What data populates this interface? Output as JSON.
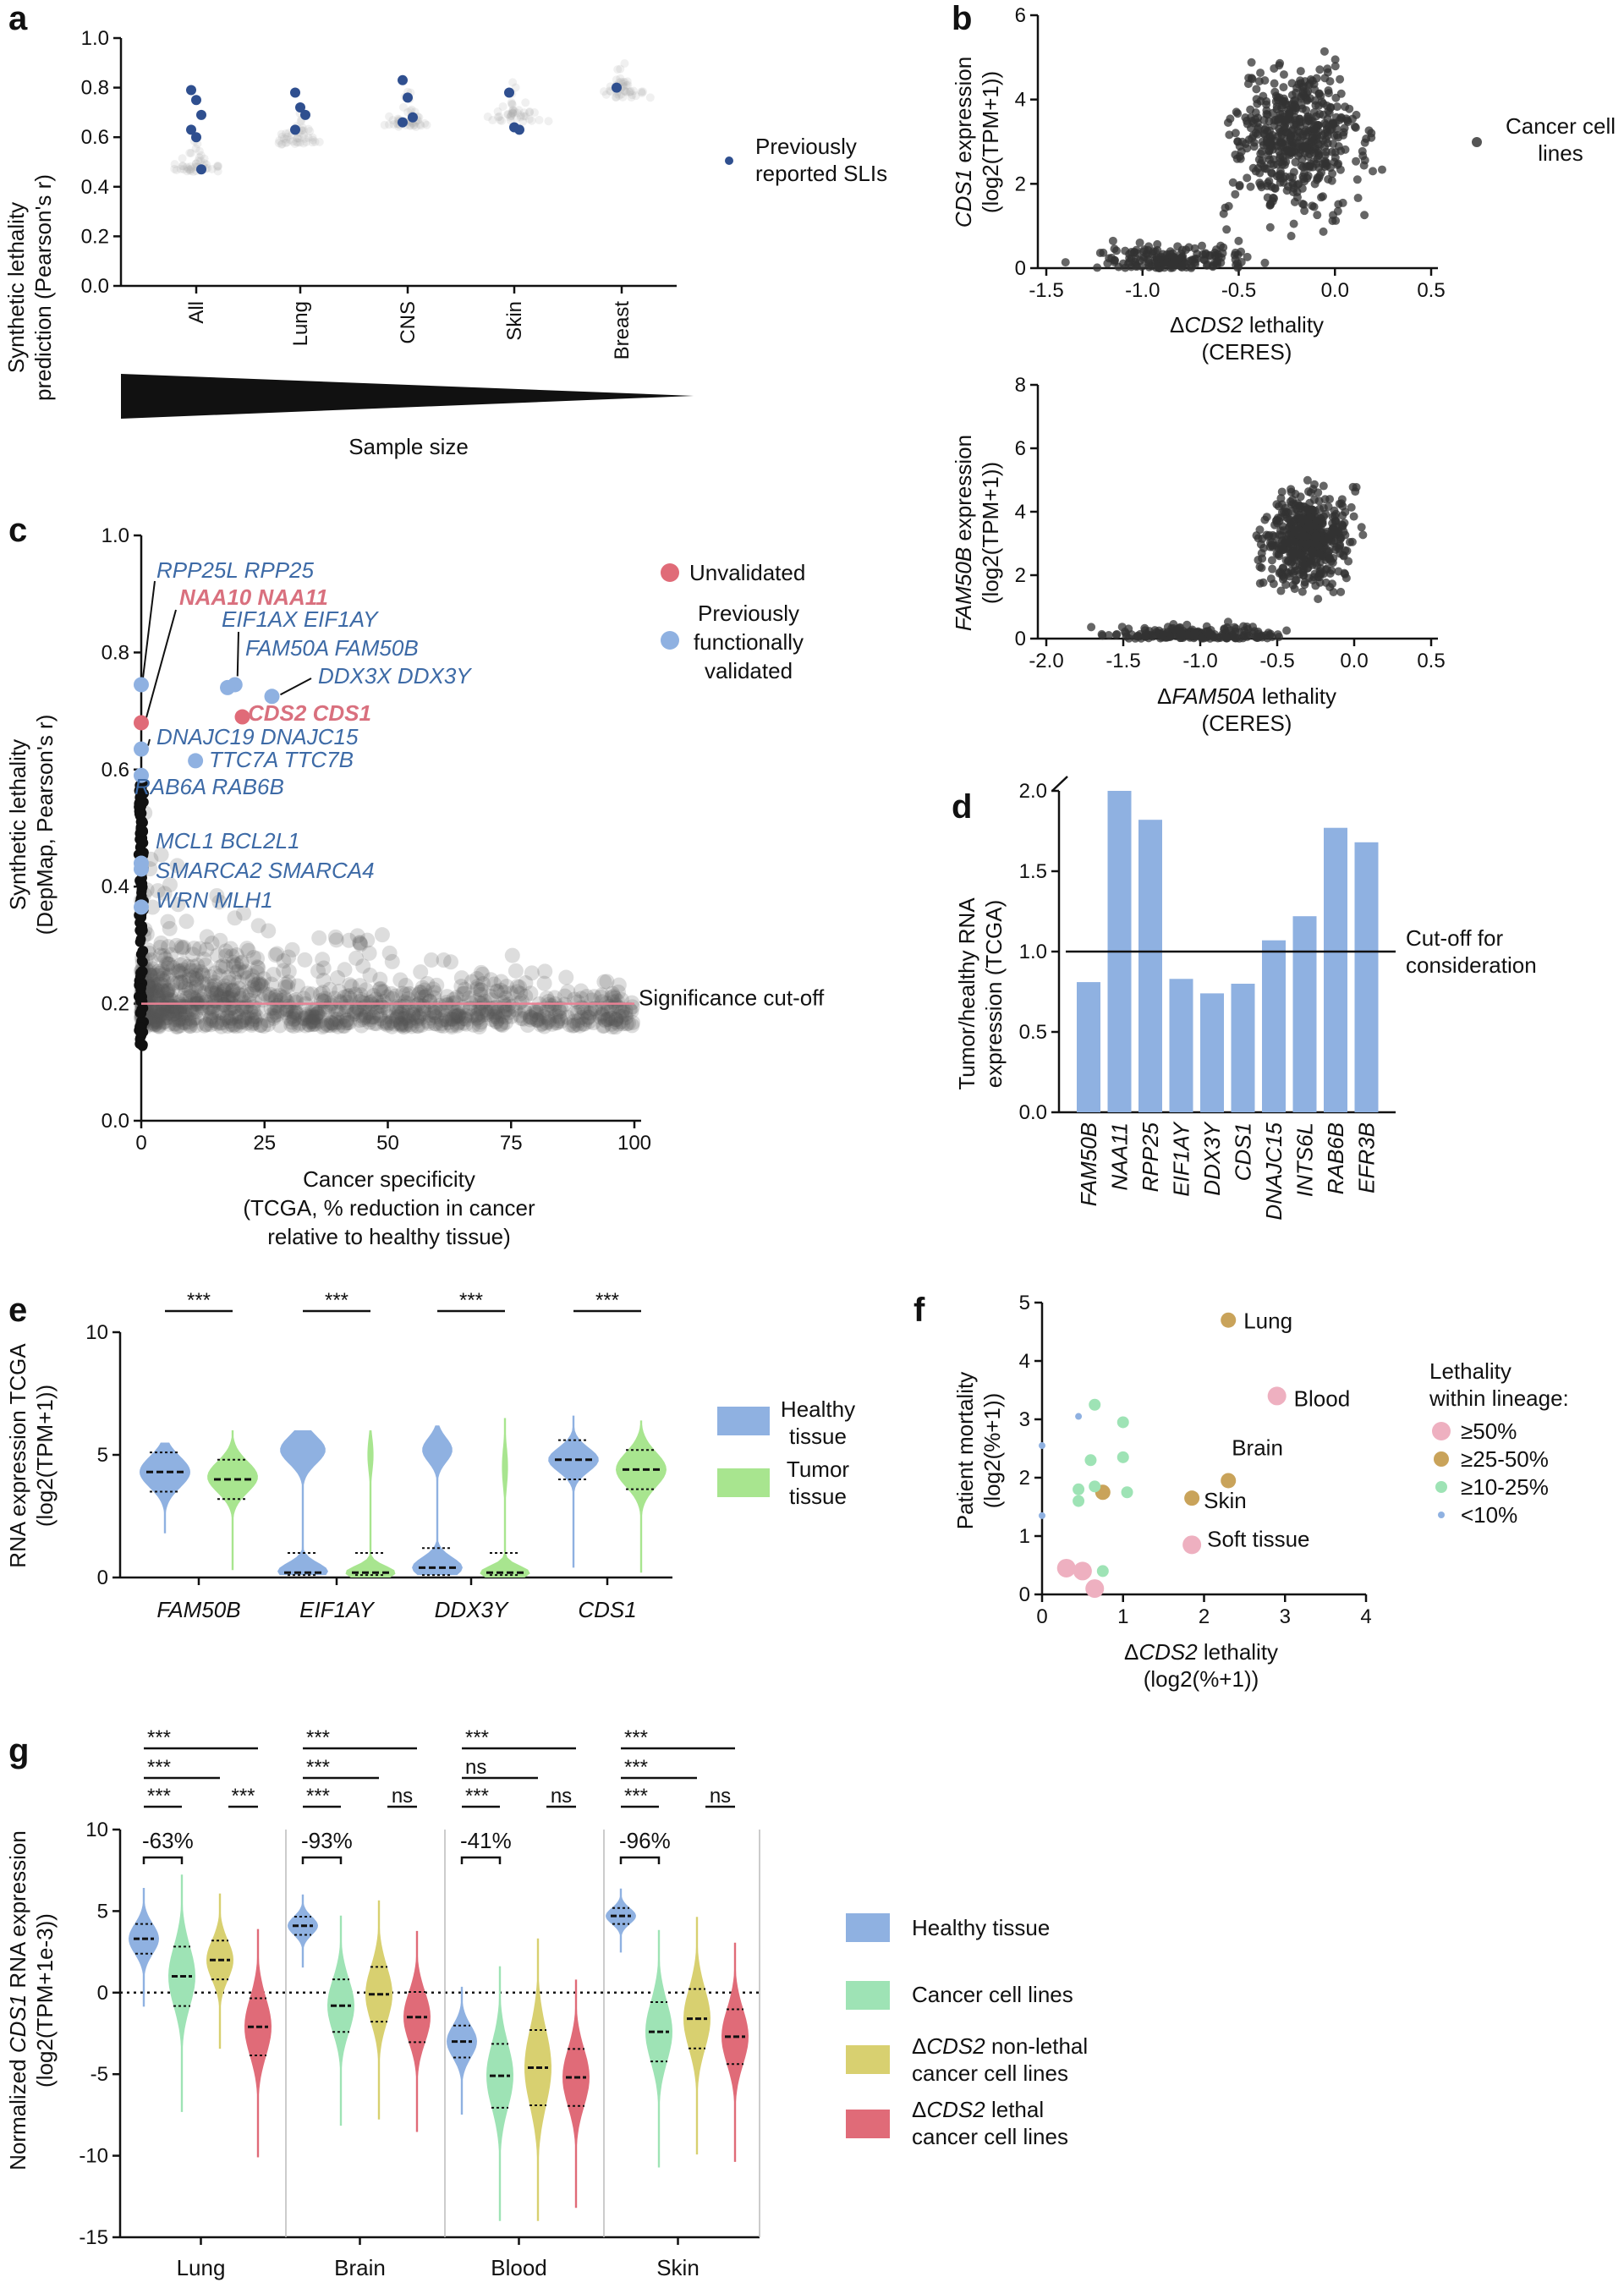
{
  "colors": {
    "blue": "#8fb1e1",
    "green": "#a8e58f",
    "red": "#e06b78",
    "yellow": "#d8d070",
    "mint": "#9ee3b5",
    "pink": "#eeb0c0",
    "gold": "#c9a35a",
    "darkBlue": "#2f4f8f",
    "labelBlue": "#3d6aa6",
    "labelRed": "#d9707e",
    "cutoff": "#e88295"
  },
  "panels": {
    "a": {
      "letter": "a",
      "ylabel1": "Synthetic lethality",
      "ylabel2": "prediction (Pearson's r)",
      "legend": "Previously reported SLIs",
      "legendLines": [
        "Previously",
        "reported SLIs"
      ],
      "wedgeLabel": "Sample size",
      "chart_data": {
        "type": "scatter",
        "ylim": [
          0,
          1.0
        ],
        "yticks": [
          "0.0",
          "0.2",
          "0.4",
          "0.6",
          "0.8",
          "1.0"
        ],
        "categories": [
          "All",
          "Lung",
          "CNS",
          "Skin",
          "Breast"
        ],
        "cloud_center": [
          0.46,
          0.57,
          0.64,
          0.66,
          0.76
        ],
        "reported_SLIs": [
          [
            0.79,
            0.75,
            0.69,
            0.63,
            0.6,
            0.47
          ],
          [
            0.78,
            0.72,
            0.69,
            0.63
          ],
          [
            0.83,
            0.76,
            0.68,
            0.66
          ],
          [
            0.78,
            0.64,
            0.63
          ],
          [
            0.8
          ]
        ]
      }
    },
    "b": {
      "letter": "b",
      "legend": "Cancer cell lines",
      "legendLines": [
        "Cancer cell",
        "lines"
      ],
      "top": {
        "ylabelItalic": "CDS1",
        "ylabelRest": " expression",
        "ylabel2": "(log2(TPM+1))",
        "xlabelPrefix": "Δ",
        "xlabelItalic": "CDS2",
        "xlabelRest": " lethality",
        "xlabel2": "(CERES)",
        "chart_data": {
          "type": "scatter",
          "xlim": [
            -1.5,
            0.5
          ],
          "ylim": [
            0,
            6
          ],
          "xticks": [
            "-1.5",
            "-1.0",
            "-0.5",
            "0.0",
            "0.5"
          ],
          "yticks": [
            "0",
            "2",
            "4",
            "6"
          ],
          "n_points": 700
        }
      },
      "bottom": {
        "ylabelItalic": "FAM50B",
        "ylabelRest": " expression",
        "ylabel2": "(log2(TPM+1))",
        "xlabelPrefix": "Δ",
        "xlabelItalic": "FAM50A",
        "xlabelRest": " lethality",
        "xlabel2": "(CERES)",
        "chart_data": {
          "type": "scatter",
          "xlim": [
            -2.0,
            0.5
          ],
          "ylim": [
            0,
            8
          ],
          "xticks": [
            "-2.0",
            "-1.5",
            "-1.0",
            "-0.5",
            "0.0",
            "0.5"
          ],
          "yticks": [
            "0",
            "2",
            "4",
            "6",
            "8"
          ],
          "n_points": 700
        }
      }
    },
    "c": {
      "letter": "c",
      "ylabel1": "Synthetic lethality",
      "ylabel2": "(DepMap, Pearson's r)",
      "xlabel1": "Cancer specificity",
      "xlabel2": "(TCGA, % reduction in cancer",
      "xlabel3": "relative to healthy tissue)",
      "legendUnvalidated": "Unvalidated",
      "legendValidatedLines": [
        "Previously",
        "functionally",
        "validated"
      ],
      "cutoffLabel": "Significance cut-off",
      "chart_data": {
        "type": "scatter",
        "xlim": [
          0,
          100
        ],
        "ylim": [
          0,
          1.0
        ],
        "xticks": [
          "0",
          "25",
          "50",
          "75",
          "100"
        ],
        "yticks": [
          "0.0",
          "0.2",
          "0.4",
          "0.6",
          "0.8",
          "1.0"
        ],
        "cutoff": 0.2,
        "labeled": [
          {
            "label": "RPP25L RPP25",
            "x": 0,
            "y": 0.745,
            "status": "validated"
          },
          {
            "label": "NAA10 NAA11",
            "x": 0,
            "y": 0.68,
            "status": "unvalidated"
          },
          {
            "label": "EIF1AX EIF1AY",
            "x": 19,
            "y": 0.745,
            "status": "validated"
          },
          {
            "label": "FAM50A FAM50B",
            "x": 17.5,
            "y": 0.74,
            "status": "validated"
          },
          {
            "label": "DDX3X DDX3Y",
            "x": 26.5,
            "y": 0.725,
            "status": "validated"
          },
          {
            "label": "CDS2 CDS1",
            "x": 20.5,
            "y": 0.69,
            "status": "unvalidated"
          },
          {
            "label": "DNAJC19 DNAJC15",
            "x": 0,
            "y": 0.635,
            "status": "validated"
          },
          {
            "label": "TTC7A TTC7B",
            "x": 11,
            "y": 0.615,
            "status": "validated"
          },
          {
            "label": "RAB6A RAB6B",
            "x": 0,
            "y": 0.59,
            "status": "validated"
          },
          {
            "label": "MCL1 BCL2L1",
            "x": 0,
            "y": 0.44,
            "status": "validated"
          },
          {
            "label": "SMARCA2 SMARCA4",
            "x": 0,
            "y": 0.43,
            "status": "validated"
          },
          {
            "label": "WRN MLH1",
            "x": 0,
            "y": 0.365,
            "status": "validated"
          }
        ]
      }
    },
    "d": {
      "letter": "d",
      "ylabel1": "Tumor/healthy RNA",
      "ylabel2": "expression (TCGA)",
      "cutoffLines": [
        "Cut-off for",
        "consideration"
      ],
      "chart_data": {
        "type": "bar",
        "categories": [
          "FAM50B",
          "NAA11",
          "RPP25",
          "EIF1AY",
          "DDX3Y",
          "CDS1",
          "DNAJC15",
          "INTS6L",
          "RAB6B",
          "EFR3B"
        ],
        "values": [
          0.81,
          2.0,
          1.82,
          0.83,
          0.74,
          0.8,
          1.07,
          1.22,
          1.77,
          1.68
        ],
        "ylim": [
          0,
          2.0
        ],
        "yticks": [
          "0.0",
          "0.5",
          "1.0",
          "1.5",
          "2.0"
        ],
        "cutoff": 1.0
      }
    },
    "e": {
      "letter": "e",
      "ylabel1": "RNA expression TCGA",
      "ylabel2": "(log2(TPM+1))",
      "legendHealthy": [
        "Healthy",
        "tissue"
      ],
      "legendTumor": [
        "Tumor",
        "tissue"
      ],
      "chart_data": {
        "type": "violin",
        "categories": [
          "FAM50B",
          "EIF1AY",
          "DDX3Y",
          "CDS1"
        ],
        "ylim": [
          0,
          10
        ],
        "yticks": [
          "0",
          "5",
          "10"
        ],
        "significance": [
          "***",
          "***",
          "***",
          "***"
        ],
        "healthy_median": [
          4.3,
          0.2,
          0.4,
          4.8
        ],
        "tumor_median": [
          4.0,
          0.2,
          0.2,
          4.4
        ]
      }
    },
    "f": {
      "letter": "f",
      "ylabel1": "Patient mortality",
      "ylabel2": "(log2(%+1))",
      "xlabelPrefix": "Δ",
      "xlabelItalic": "CDS2",
      "xlabelRest": " lethality",
      "xlabel2": "(log2(%+1))",
      "legendTitle": [
        "Lethality",
        "within lineage:"
      ],
      "legendItems": [
        "≥50%",
        "≥25-50%",
        "≥10-25%",
        "<10%"
      ],
      "chart_data": {
        "type": "scatter",
        "xlim": [
          0,
          4
        ],
        "ylim": [
          0,
          5
        ],
        "xticks": [
          "0",
          "1",
          "2",
          "3",
          "4"
        ],
        "yticks": [
          "0",
          "1",
          "2",
          "3",
          "4",
          "5"
        ],
        "points": [
          {
            "x": 2.3,
            "y": 4.7,
            "group": "≥25-50%",
            "label": "Lung"
          },
          {
            "x": 2.9,
            "y": 3.4,
            "group": "≥50%",
            "label": "Blood"
          },
          {
            "x": 2.3,
            "y": 1.95,
            "group": "≥25-50%",
            "label": "Brain"
          },
          {
            "x": 1.85,
            "y": 1.65,
            "group": "≥25-50%",
            "label": "Skin"
          },
          {
            "x": 1.85,
            "y": 0.85,
            "group": "≥50%",
            "label": "Soft tissue"
          },
          {
            "x": 0.75,
            "y": 1.75,
            "group": "≥25-50%",
            "label": ""
          },
          {
            "x": 0.3,
            "y": 0.45,
            "group": "≥50%",
            "label": ""
          },
          {
            "x": 0.5,
            "y": 0.4,
            "group": "≥50%",
            "label": ""
          },
          {
            "x": 0.65,
            "y": 0.1,
            "group": "≥50%",
            "label": ""
          },
          {
            "x": 0.65,
            "y": 3.25,
            "group": "≥10-25%",
            "label": ""
          },
          {
            "x": 1.0,
            "y": 2.95,
            "group": "≥10-25%",
            "label": ""
          },
          {
            "x": 1.0,
            "y": 2.35,
            "group": "≥10-25%",
            "label": ""
          },
          {
            "x": 0.6,
            "y": 2.3,
            "group": "≥10-25%",
            "label": ""
          },
          {
            "x": 0.45,
            "y": 1.8,
            "group": "≥10-25%",
            "label": ""
          },
          {
            "x": 0.65,
            "y": 1.85,
            "group": "≥10-25%",
            "label": ""
          },
          {
            "x": 1.05,
            "y": 1.75,
            "group": "≥10-25%",
            "label": ""
          },
          {
            "x": 0.45,
            "y": 1.6,
            "group": "≥10-25%",
            "label": ""
          },
          {
            "x": 0.75,
            "y": 0.4,
            "group": "≥10-25%",
            "label": ""
          },
          {
            "x": 0.45,
            "y": 3.05,
            "group": "<10%",
            "label": ""
          },
          {
            "x": 0.0,
            "y": 2.55,
            "group": "<10%",
            "label": ""
          },
          {
            "x": 0.0,
            "y": 1.35,
            "group": "<10%",
            "label": ""
          }
        ]
      }
    },
    "g": {
      "letter": "g",
      "ylabel1Prefix": "Normalized ",
      "ylabel1Italic": "CDS1",
      "ylabel1Rest": " RNA expression",
      "ylabel2": "(log2(TPM+1e-3))",
      "legend": [
        {
          "lines": [
            "Healthy tissue"
          ]
        },
        {
          "lines": [
            "Cancer cell lines"
          ]
        },
        {
          "lines": [
            "non-lethal",
            "cancer cell lines"
          ],
          "prefix": "Δ",
          "italic": "CDS2",
          "rest": " non-lethal",
          "line2": "cancer cell lines"
        },
        {
          "lines": [
            "lethal",
            "cancer cell lines"
          ],
          "prefix": "Δ",
          "italic": "CDS2",
          "rest": " lethal",
          "line2": "cancer cell lines"
        }
      ],
      "chart_data": {
        "type": "violin",
        "groups": [
          "Lung",
          "Brain",
          "Blood",
          "Skin"
        ],
        "series": [
          "Healthy tissue",
          "Cancer cell lines",
          "ΔCDS2 non-lethal cancer cell lines",
          "ΔCDS2 lethal cancer cell lines"
        ],
        "ylim": [
          -15,
          10
        ],
        "yticks": [
          "-15",
          "-10",
          "-5",
          "0",
          "5",
          "10"
        ],
        "medians": [
          [
            3.3,
            1.0,
            2.0,
            -2.1
          ],
          [
            4.1,
            -0.8,
            -0.1,
            -1.5
          ],
          [
            -3.0,
            -5.1,
            -4.6,
            -5.2
          ],
          [
            4.7,
            -2.4,
            -1.6,
            -2.7
          ]
        ],
        "percent_change": [
          "-63%",
          "-93%",
          "-41%",
          "-96%"
        ],
        "significance": [
          {
            "row1": "***",
            "row2": "***",
            "row3a": "***",
            "row3b": "***"
          },
          {
            "row1": "***",
            "row2": "***",
            "row3a": "***",
            "row3b": "ns"
          },
          {
            "row1": "***",
            "row2": "ns",
            "row3a": "***",
            "row3b": "ns"
          },
          {
            "row1": "***",
            "row2": "***",
            "row3a": "***",
            "row3b": "ns"
          }
        ]
      }
    }
  }
}
